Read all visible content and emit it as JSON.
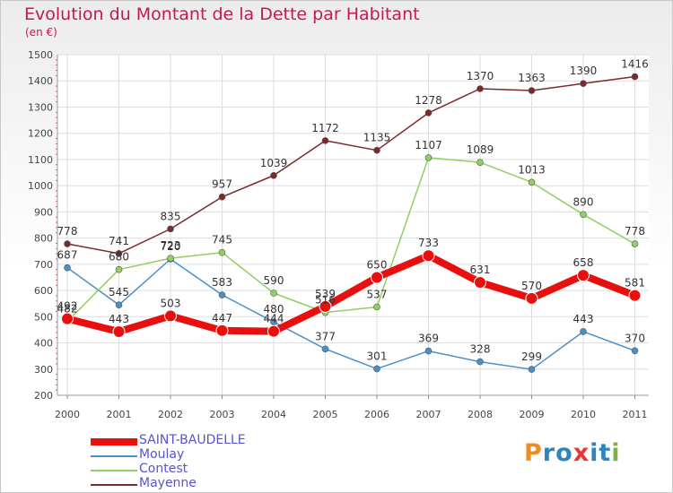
{
  "title": "Evolution du Montant de la Dette par Habitant",
  "unit_label": "(en €)",
  "brand": {
    "letters": [
      "P",
      "r",
      "o",
      "x",
      "i",
      "t",
      "i"
    ],
    "colors": [
      "#f28c1e",
      "#2e86c1",
      "#2e86c1",
      "#e53935",
      "#2e86c1",
      "#2e86c1",
      "#7cb342"
    ]
  },
  "chart_data": {
    "type": "line",
    "title": "Evolution du Montant de la Dette par Habitant",
    "ylabel": "(en €)",
    "x": [
      "2000",
      "2001",
      "2002",
      "2003",
      "2004",
      "2005",
      "2006",
      "2007",
      "2008",
      "2009",
      "2010",
      "2011"
    ],
    "ylim": [
      200,
      1500
    ],
    "yticks": [
      "200",
      "300",
      "400",
      "500",
      "600",
      "700",
      "800",
      "900",
      "1000",
      "1100",
      "1200",
      "1300",
      "1400",
      "1500"
    ],
    "grid": true,
    "legend_position": "bottom-left",
    "series": [
      {
        "name": "SAINT-BAUDELLE",
        "color": "#e8100f",
        "emphasis": true,
        "values": [
          492,
          443,
          503,
          447,
          444,
          539,
          650,
          733,
          631,
          570,
          658,
          581
        ],
        "labels": [
          "492",
          "443",
          "503",
          "447",
          "444",
          "539",
          "650",
          "733",
          "631",
          "570",
          "658",
          "581"
        ]
      },
      {
        "name": "Moulay",
        "color": "#4a90c8",
        "values": [
          687,
          545,
          720,
          583,
          480,
          377,
          301,
          369,
          328,
          299,
          443,
          370
        ],
        "labels": [
          "687",
          "545",
          "720",
          "583",
          "480",
          "377",
          "301",
          "369",
          "328",
          "299",
          "443",
          "370"
        ]
      },
      {
        "name": "Contest",
        "color": "#8fd060",
        "values": [
          482,
          680,
          723,
          745,
          590,
          516,
          537,
          1107,
          1089,
          1013,
          890,
          778
        ],
        "labels": [
          "482",
          "680",
          "723",
          "745",
          "590",
          "516",
          "537",
          "1107",
          "1089",
          "1013",
          "890",
          "778"
        ]
      },
      {
        "name": "Mayenne",
        "color": "#7a2a2a",
        "values": [
          778,
          741,
          835,
          957,
          1039,
          1172,
          1135,
          1278,
          1370,
          1363,
          1390,
          1416
        ],
        "labels": [
          "778",
          "741",
          "835",
          "957",
          "1039",
          "1172",
          "1135",
          "1278",
          "1370",
          "1363",
          "1390",
          "1416"
        ]
      }
    ]
  }
}
